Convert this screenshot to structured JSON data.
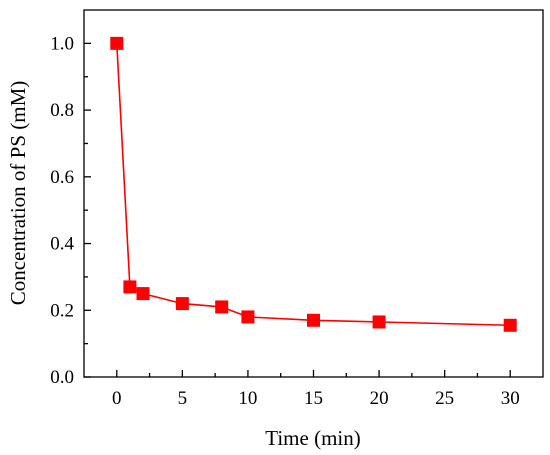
{
  "chart_data": {
    "type": "line",
    "xlabel": "Time (min)",
    "ylabel": "Concentration of PS (mM)",
    "xlim": [
      -2.5,
      32.5
    ],
    "ylim": [
      0.0,
      1.1
    ],
    "xticks": [
      "0",
      "5",
      "10",
      "15",
      "20",
      "25",
      "30"
    ],
    "yticks": [
      "0.0",
      "0.2",
      "0.4",
      "0.6",
      "0.8",
      "1.0"
    ],
    "grid": false,
    "marker": "square",
    "series": [
      {
        "color": "#ff0000",
        "x": [
          0,
          1,
          2,
          5,
          8,
          10,
          15,
          20,
          30
        ],
        "y": [
          1.0,
          0.27,
          0.25,
          0.22,
          0.21,
          0.18,
          0.17,
          0.165,
          0.155
        ]
      }
    ]
  }
}
